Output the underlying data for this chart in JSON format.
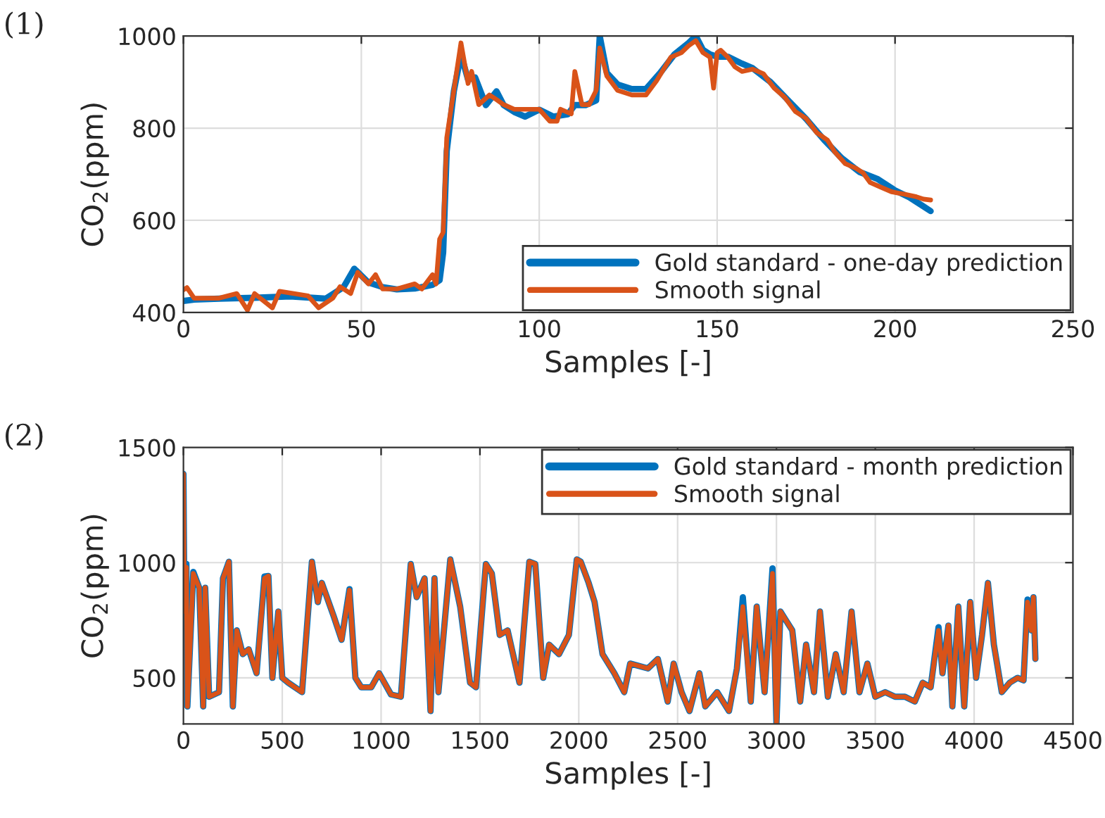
{
  "chart_data": [
    {
      "type": "line",
      "xlabel": "Samples [-]",
      "ylabel": "CO$_{2}$(ppm)",
      "annotations": [
        "(1)"
      ],
      "xlim": [
        0,
        250
      ],
      "ylim": [
        400,
        1000
      ],
      "xticks": [
        0,
        50,
        100,
        150,
        200,
        250
      ],
      "yticks": [
        400,
        600,
        800,
        1000
      ],
      "grid": true,
      "legend": "bottom right",
      "series": [
        {
          "name": "Gold standard - one-day prediction",
          "color": "#0072bd",
          "x": [
            0,
            3,
            10,
            20,
            30,
            40,
            45,
            48,
            52,
            56,
            60,
            65,
            70,
            72,
            73,
            74,
            76,
            78,
            80,
            82,
            85,
            88,
            90,
            93,
            96,
            100,
            104,
            108,
            110,
            113,
            116,
            117,
            119,
            122,
            126,
            130,
            134,
            138,
            142,
            144,
            146,
            148,
            150,
            153,
            157,
            160,
            165,
            170,
            175,
            180,
            185,
            190,
            195,
            200,
            204,
            206,
            208,
            210
          ],
          "values": [
            425,
            428,
            430,
            432,
            435,
            430,
            455,
            495,
            465,
            455,
            450,
            452,
            460,
            470,
            530,
            750,
            880,
            960,
            905,
            910,
            850,
            880,
            850,
            835,
            825,
            840,
            825,
            830,
            850,
            850,
            860,
            1000,
            920,
            895,
            885,
            885,
            920,
            960,
            985,
            1000,
            970,
            960,
            955,
            955,
            940,
            930,
            900,
            860,
            820,
            775,
            735,
            705,
            690,
            665,
            650,
            640,
            630,
            620
          ]
        },
        {
          "name": "Smooth signal",
          "color": "#d95319",
          "x": [
            0,
            1,
            3,
            10,
            15,
            18,
            20,
            25,
            27,
            35,
            38,
            42,
            44,
            47,
            49,
            52,
            54,
            56,
            60,
            65,
            67,
            70,
            71,
            72,
            73,
            74,
            76,
            78,
            80,
            81,
            83,
            86,
            88,
            90,
            93,
            97,
            100,
            103,
            105,
            106,
            109,
            110,
            112,
            114,
            116,
            117,
            119,
            122,
            126,
            130,
            133,
            137,
            140,
            142,
            144,
            146,
            148,
            149,
            150,
            151,
            153,
            155,
            157,
            160,
            163,
            166,
            169,
            172,
            175,
            178,
            181,
            183,
            186,
            189,
            191,
            193,
            196,
            199,
            203,
            206,
            208,
            210
          ],
          "values": [
            449,
            454,
            431,
            431,
            441,
            405,
            441,
            410,
            446,
            436,
            410,
            431,
            456,
            441,
            487,
            462,
            482,
            451,
            451,
            462,
            451,
            482,
            462,
            559,
            574,
            779,
            882,
            985,
            897,
            923,
            851,
            872,
            862,
            851,
            841,
            841,
            841,
            815,
            815,
            841,
            831,
            923,
            851,
            851,
            882,
            974,
            913,
            882,
            872,
            872,
            903,
            954,
            964,
            979,
            990,
            964,
            954,
            887,
            964,
            969,
            954,
            933,
            923,
            928,
            918,
            887,
            867,
            836,
            821,
            790,
            774,
            749,
            723,
            713,
            703,
            682,
            672,
            662,
            656,
            651,
            646,
            644
          ]
        }
      ]
    },
    {
      "type": "line",
      "xlabel": "Samples [-]",
      "ylabel": "CO$_{2}$(ppm)",
      "annotations": [
        "(2)"
      ],
      "xlim": [
        0,
        4500
      ],
      "ylim": [
        300,
        1500
      ],
      "xticks": [
        0,
        500,
        1000,
        1500,
        2000,
        2500,
        3000,
        3500,
        4000,
        4500
      ],
      "yticks": [
        500,
        1000,
        1500
      ],
      "grid": true,
      "legend": "top right",
      "series": [
        {
          "name": "Gold standard - month prediction",
          "color": "#0072bd",
          "x": [
            0,
            5,
            15,
            20,
            50,
            80,
            100,
            110,
            130,
            180,
            200,
            230,
            250,
            270,
            300,
            330,
            370,
            410,
            430,
            450,
            480,
            500,
            530,
            600,
            650,
            680,
            700,
            760,
            800,
            840,
            870,
            900,
            950,
            990,
            1050,
            1100,
            1150,
            1180,
            1220,
            1250,
            1270,
            1290,
            1350,
            1400,
            1450,
            1480,
            1530,
            1560,
            1600,
            1640,
            1700,
            1750,
            1780,
            1820,
            1850,
            1900,
            1950,
            1990,
            2010,
            2050,
            2080,
            2120,
            2180,
            2230,
            2260,
            2350,
            2400,
            2450,
            2480,
            2520,
            2560,
            2610,
            2640,
            2700,
            2760,
            2800,
            2830,
            2870,
            2900,
            2940,
            2980,
            3000,
            3020,
            3050,
            3080,
            3120,
            3150,
            3190,
            3220,
            3260,
            3300,
            3340,
            3380,
            3420,
            3460,
            3500,
            3550,
            3600,
            3650,
            3700,
            3740,
            3780,
            3820,
            3840,
            3870,
            3890,
            3920,
            3950,
            3980,
            4010,
            4040,
            4070,
            4100,
            4140,
            4180,
            4220,
            4250,
            4270,
            4290,
            4300,
            4310
          ],
          "values": [
            1385,
            788,
            994,
            376,
            960,
            891,
            376,
            891,
            418,
            438,
            932,
            1004,
            376,
            706,
            603,
            624,
            520,
            940,
            942,
            500,
            788,
            500,
            479,
            438,
            1004,
            829,
            912,
            768,
            665,
            885,
            500,
            459,
            459,
            520,
            428,
            418,
            994,
            850,
            932,
            356,
            932,
            438,
            1014,
            809,
            479,
            459,
            994,
            953,
            686,
            706,
            479,
            1004,
            994,
            500,
            644,
            603,
            686,
            1014,
            1004,
            912,
            829,
            603,
            520,
            438,
            562,
            541,
            582,
            397,
            562,
            438,
            356,
            520,
            376,
            438,
            356,
            541,
            850,
            397,
            809,
            438,
            975,
            300,
            788,
            747,
            706,
            397,
            644,
            438,
            788,
            418,
            603,
            438,
            788,
            438,
            562,
            418,
            438,
            418,
            418,
            397,
            479,
            459,
            720,
            520,
            727,
            376,
            809,
            376,
            829,
            500,
            686,
            912,
            644,
            438,
            479,
            500,
            489,
            840,
            706,
            850,
            582
          ]
        },
        {
          "name": "Smooth signal",
          "color": "#d95319",
          "x": [
            0,
            5,
            15,
            20,
            50,
            80,
            100,
            110,
            130,
            180,
            200,
            230,
            250,
            270,
            300,
            330,
            370,
            410,
            430,
            450,
            480,
            500,
            530,
            600,
            650,
            680,
            700,
            760,
            800,
            840,
            870,
            900,
            950,
            990,
            1050,
            1100,
            1150,
            1180,
            1220,
            1250,
            1270,
            1290,
            1350,
            1400,
            1450,
            1480,
            1530,
            1560,
            1600,
            1640,
            1700,
            1750,
            1780,
            1820,
            1850,
            1900,
            1950,
            1990,
            2010,
            2050,
            2080,
            2120,
            2180,
            2230,
            2260,
            2350,
            2400,
            2450,
            2480,
            2520,
            2560,
            2610,
            2640,
            2700,
            2760,
            2800,
            2830,
            2870,
            2900,
            2940,
            2980,
            3000,
            3020,
            3050,
            3080,
            3120,
            3150,
            3190,
            3220,
            3260,
            3300,
            3340,
            3380,
            3420,
            3460,
            3500,
            3550,
            3600,
            3650,
            3700,
            3740,
            3780,
            3820,
            3840,
            3870,
            3890,
            3920,
            3950,
            3980,
            4010,
            4040,
            4070,
            4100,
            4140,
            4180,
            4220,
            4250,
            4270,
            4290,
            4300,
            4310
          ],
          "values": [
            1385,
            788,
            980,
            376,
            953,
            891,
            376,
            891,
            418,
            438,
            932,
            1004,
            376,
            706,
            603,
            624,
            520,
            932,
            942,
            500,
            788,
            500,
            479,
            438,
            1004,
            829,
            912,
            768,
            665,
            881,
            500,
            459,
            459,
            520,
            428,
            418,
            994,
            850,
            932,
            356,
            932,
            438,
            1014,
            809,
            479,
            459,
            994,
            953,
            686,
            706,
            479,
            1004,
            994,
            500,
            644,
            603,
            686,
            1014,
            1004,
            912,
            829,
            603,
            520,
            438,
            562,
            541,
            582,
            397,
            562,
            438,
            356,
            520,
            376,
            438,
            356,
            541,
            809,
            397,
            809,
            438,
            953,
            300,
            788,
            747,
            706,
            397,
            644,
            438,
            788,
            418,
            603,
            438,
            788,
            438,
            562,
            418,
            438,
            418,
            418,
            397,
            479,
            459,
            706,
            520,
            727,
            376,
            809,
            376,
            829,
            500,
            686,
            912,
            644,
            438,
            479,
            500,
            489,
            829,
            706,
            850,
            582
          ]
        }
      ]
    }
  ]
}
